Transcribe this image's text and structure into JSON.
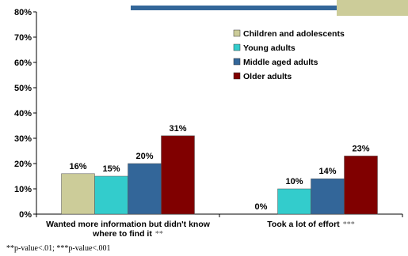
{
  "chart_data": {
    "type": "bar",
    "ylim": [
      0,
      80
    ],
    "y_ticks": [
      "0%",
      "10%",
      "20%",
      "30%",
      "40%",
      "50%",
      "60%",
      "70%",
      "80%"
    ],
    "grid": false,
    "legend_placement": "top-right",
    "categories": [
      {
        "lines": [
          "Wanted more information but didn't know",
          "where to find it"
        ],
        "marker": "**"
      },
      {
        "lines": [
          "Took a lot of effort"
        ],
        "marker": "***"
      }
    ],
    "series": [
      {
        "name": "Children and adolescents",
        "color": "#cccc99",
        "values": [
          16,
          0
        ],
        "labels": [
          "16%",
          "0%"
        ]
      },
      {
        "name": "Young adults",
        "color": "#33cccc",
        "values": [
          15,
          10
        ],
        "labels": [
          "15%",
          "10%"
        ]
      },
      {
        "name": "Middle aged adults",
        "color": "#336699",
        "values": [
          20,
          14
        ],
        "labels": [
          "20%",
          "14%"
        ]
      },
      {
        "name": "Older adults",
        "color": "#800000",
        "values": [
          31,
          23
        ],
        "labels": [
          "31%",
          "23%"
        ]
      }
    ]
  },
  "decor": {
    "bar_color": "#336699",
    "block_color": "#cccc99"
  },
  "footnote": "**p-value<.01; ***p-value<.001"
}
